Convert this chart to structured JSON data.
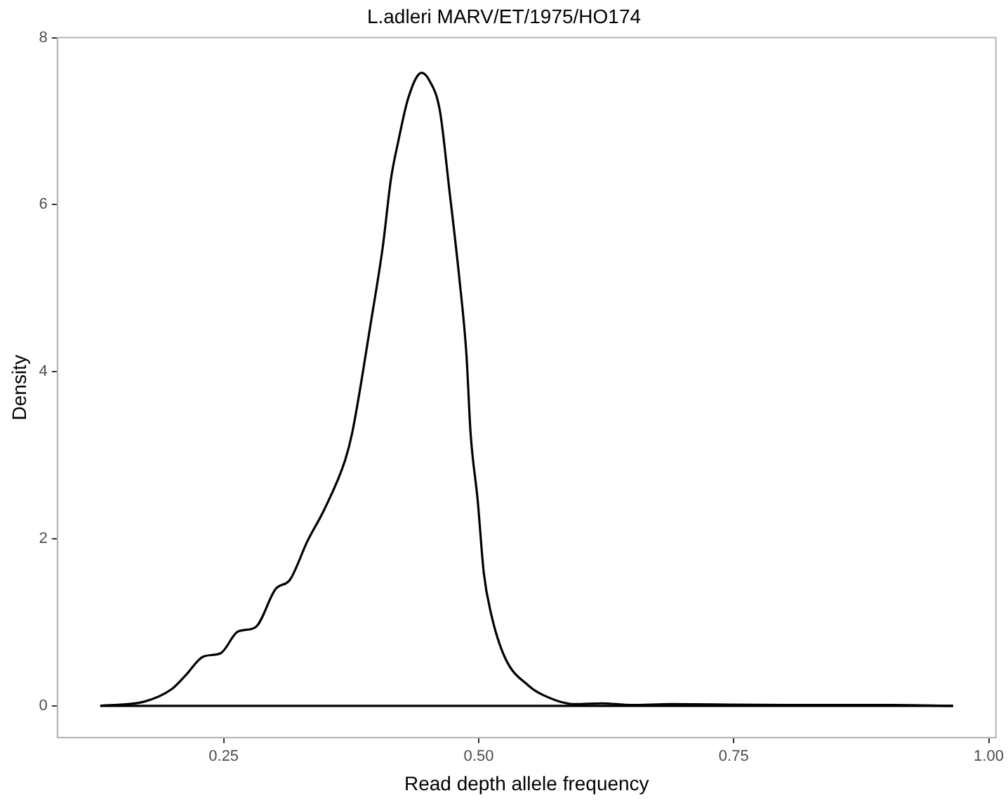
{
  "chart_data": {
    "type": "line",
    "title": "L.adleri MARV/ET/1975/HO174",
    "xlabel": "Read depth allele frequency",
    "ylabel": "Density",
    "xlim": [
      0.087,
      1.007
    ],
    "xticks": [
      {
        "value": 0.25,
        "label": "0.25"
      },
      {
        "value": 0.5,
        "label": "0.50"
      },
      {
        "value": 0.75,
        "label": "0.75"
      },
      {
        "value": 1,
        "label": "1.00"
      }
    ],
    "ylim": [
      -0.38,
      8
    ],
    "yticks": [
      0,
      2,
      4,
      6,
      8
    ],
    "grid": false,
    "legend": false,
    "marker": "none",
    "line_style": "solid",
    "ref_lines": [
      {
        "axis": "y",
        "value": 0,
        "color": "#000000"
      }
    ],
    "series": [
      {
        "color": "#000000",
        "x": [
          0.129,
          0.172,
          0.199,
          0.213,
          0.23,
          0.247,
          0.264,
          0.281,
          0.301,
          0.315,
          0.332,
          0.349,
          0.369,
          0.376,
          0.394,
          0.406,
          0.414,
          0.421,
          0.431,
          0.444,
          0.452,
          0.462,
          0.471,
          0.481,
          0.488,
          0.492,
          0.499,
          0.505,
          0.512,
          0.526,
          0.549,
          0.563,
          0.594,
          0.621,
          0.649,
          0.689,
          0.8,
          0.9,
          0.965
        ],
        "values": [
          0,
          0.05,
          0.2,
          0.37,
          0.59,
          0.63,
          0.89,
          0.94,
          1.4,
          1.51,
          1.97,
          2.36,
          2.94,
          3.27,
          4.57,
          5.5,
          6.31,
          6.75,
          7.28,
          7.58,
          7.48,
          7.12,
          6.2,
          5.12,
          4.2,
          3.27,
          2.46,
          1.59,
          1.11,
          0.57,
          0.24,
          0.13,
          0.02,
          0.03,
          0.01,
          0.02,
          0.01,
          0.01,
          0
        ]
      }
    ]
  }
}
